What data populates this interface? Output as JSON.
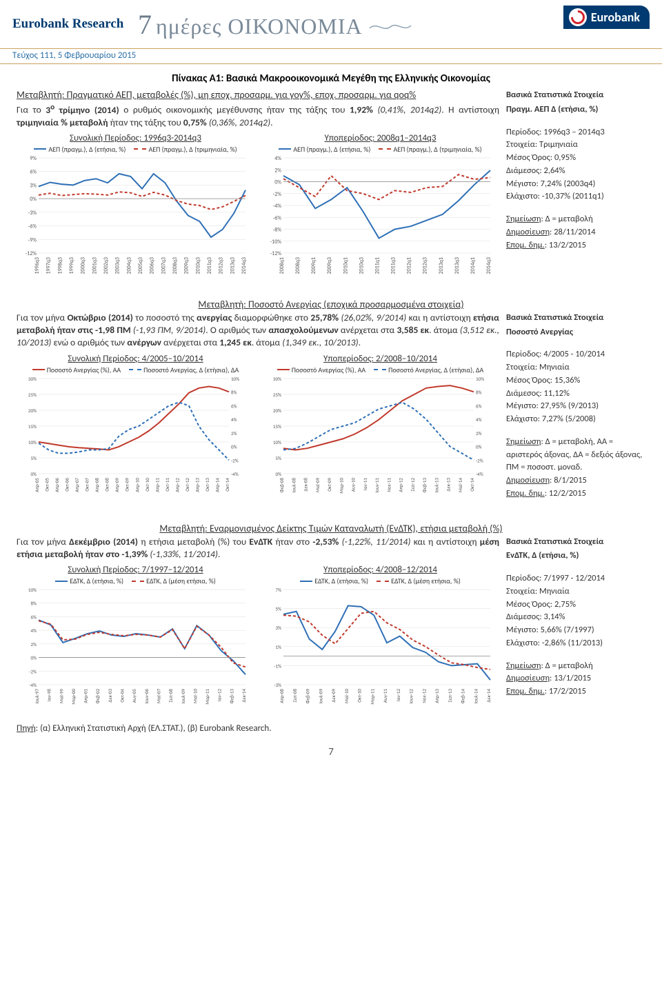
{
  "header": {
    "brand_left": "Eurobank Research",
    "title_seven": "7",
    "title_word": "ημέρες ΟΙΚΟΝΟΜΙΑ",
    "logo_text": "Eurobank"
  },
  "subhead": "Τεύχος 111, 5 Φεβρουαρίου 2015",
  "table_title": "Πίνακας A1: Βασικά Μακροοικονομικά Μεγέθη της Ελληνικής Οικονομίας",
  "sec1": {
    "var_title": "Μεταβλητή: Πραγματικό ΑΕΠ, μεταβολές (%), μη εποχ. προσαρμ. για yoy%, εποχ. προσαρμ. για qoq%",
    "para": "Για το <b>3<sup>ο</sup> τρίμηνο (2014)</b> ο ρυθμός οικονομικής μεγέθυνσης ήταν της τάξης του <b>1,92%</b> <i>(0,41%, 2014q2)</i>. Η αντίστοιχη <b>τριμηνιαία % μεταβολή</b> ήταν της τάξης του <b>0,75%</b> <i>(0,36%, 2014q2)</i>.",
    "chart_left_caption": "Συνολική Περίοδος: 1996q3-2014q3",
    "chart_right_caption": "Υποπερίοδος: 2008q1–2014q3",
    "legend_a": "ΑΕΠ (πραγμ.), Δ (ετήσια, %)",
    "legend_b": "ΑΕΠ (πραγμ.), Δ (τριμηνιαία, %)",
    "chart_left": {
      "type": "line",
      "y_ticks": [
        "9%",
        "6%",
        "3%",
        "0%",
        "-3%",
        "-6%",
        "-9%",
        "-12%"
      ],
      "ylim": [
        -12,
        9
      ],
      "x_labels": [
        "1996q3",
        "1997q3",
        "1998q3",
        "1999q3",
        "2000q3",
        "2001q3",
        "2002q3",
        "2003q3",
        "2004q3",
        "2005q3",
        "2006q3",
        "2007q3",
        "2008q3",
        "2009q3",
        "2010q3",
        "2011q3",
        "2012q3",
        "2013q3",
        "2014q3"
      ],
      "series_blue": [
        2.7,
        3.6,
        3.2,
        3.0,
        4.0,
        4.4,
        3.5,
        5.5,
        4.9,
        2.2,
        5.5,
        3.5,
        -0.5,
        -3.7,
        -5.0,
        -8.5,
        -6.8,
        -3.2,
        1.9
      ],
      "series_red": [
        0.8,
        1.2,
        0.7,
        0.9,
        1.1,
        1.0,
        0.8,
        1.5,
        1.3,
        0.5,
        1.4,
        0.8,
        -0.4,
        -1.2,
        -1.5,
        -2.4,
        -1.8,
        -0.6,
        0.7
      ],
      "blue_color": "#2e6fb6",
      "red_color": "#c0392b",
      "label_fontsize": 8
    },
    "chart_right": {
      "type": "line",
      "y_ticks": [
        "4%",
        "2%",
        "0%",
        "-2%",
        "-4%",
        "-6%",
        "-8%",
        "-10%",
        "-12%"
      ],
      "ylim": [
        -12,
        4
      ],
      "x_labels": [
        "2008q1",
        "2008q3",
        "2009q1",
        "2009q3",
        "2010q1",
        "2010q3",
        "2011q1",
        "2011q3",
        "2012q1",
        "2012q3",
        "2013q1",
        "2013q3",
        "2014q1",
        "2014q3"
      ],
      "series_blue": [
        1.0,
        -0.5,
        -4.5,
        -3.0,
        -1.0,
        -5.0,
        -9.5,
        -8.0,
        -7.5,
        -6.5,
        -5.5,
        -3.2,
        -0.5,
        1.9
      ],
      "series_red": [
        0.5,
        -1.0,
        -2.5,
        1.0,
        -1.5,
        -2.0,
        -3.0,
        -1.5,
        -1.8,
        -1.0,
        -0.8,
        1.2,
        0.4,
        0.7
      ],
      "blue_color": "#2e6fb6",
      "red_color": "#c0392b",
      "label_fontsize": 8
    },
    "stats": {
      "title": "Βασικά Στατιστικά Στοιχεία",
      "subtitle": "Πραγμ. ΑΕΠ Δ (ετήσια, %)",
      "period": "Περίοδος: 1996q3 – 2014q3",
      "data": "Στοιχεία: Τριμηνιαία",
      "mean": "Μέσος Όρος: 0,95%",
      "median": "Διάμεσος: 2,64%",
      "max": "Μέγιστο: 7,24% (2003q4)",
      "min": "Ελάχιστο: -10,37% (2011q1)",
      "note": "Σημείωση: Δ = μεταβολή",
      "pub": "Δημοσίευση: 28/11/2014",
      "next": "Επομ. δημ.: 13/2/2015"
    }
  },
  "sec2": {
    "var_title": "Μεταβλητή: Ποσοστό Ανεργίας (εποχικά προσαρμοσμένα στοιχεία)",
    "para": "Για τον μήνα <b>Οκτώβριο (2014)</b> το ποσοστό της <b>ανεργίας</b> διαμορφώθηκε στο <b>25,78%</b> <i>(26,02%, 9/2014)</i> και η αντίστοιχη <b>ετήσια μεταβολή ήταν στις -1,98 ΠΜ</b> <i>(-1,93 ΠΜ, 9/2014)</i>. Ο αριθμός των <b>απασχολούμενων</b> ανέρχεται στα <b>3,585 εκ</b>. άτομα <i>(3,512 εκ., 10/2013)</i> ενώ ο αριθμός των <b>ανέργων</b> ανέρχεται στα <b>1,245 εκ</b>. άτομα <i>(1,349 εκ., 10/2013)</i>.",
    "chart_left_caption": "Συνολική Περίοδος: 4/2005–10/2014",
    "chart_right_caption": "Υποπερίοδος: 2/2008–10/2014",
    "legend_a": "Ποσοστό Ανεργίας (%), ΑΑ",
    "legend_b": "Ποσοστό Ανεργίας, Δ (ετήσια), ΔΑ",
    "chart_left": {
      "type": "line-2axis",
      "y1_ticks": [
        "30%",
        "25%",
        "20%",
        "15%",
        "10%",
        "5%",
        "0%"
      ],
      "y2_ticks": [
        "10%",
        "8%",
        "6%",
        "4%",
        "2%",
        "0%",
        "-2%",
        "-4%"
      ],
      "y1_lim": [
        0,
        30
      ],
      "y2_lim": [
        -4,
        10
      ],
      "x_labels": [
        "Απρ-05",
        "Οκτ-05",
        "Απρ-06",
        "Οκτ-06",
        "Απρ-07",
        "Οκτ-07",
        "Απρ-08",
        "Οκτ-08",
        "Απρ-09",
        "Οκτ-09",
        "Απρ-10",
        "Οκτ-10",
        "Απρ-11",
        "Οκτ-11",
        "Απρ-12",
        "Οκτ-12",
        "Απρ-13",
        "Οκτ-13",
        "Απρ-14",
        "Οκτ-14"
      ],
      "series_red": [
        10,
        9.5,
        9,
        8.5,
        8.2,
        8,
        7.8,
        7.5,
        8.5,
        10,
        11.5,
        13.5,
        16,
        19,
        22,
        25.5,
        27,
        27.5,
        27,
        25.8
      ],
      "series_blue": [
        0.5,
        -0.5,
        -1,
        -1,
        -0.8,
        -0.5,
        -0.5,
        -0.3,
        1.5,
        2.5,
        3,
        4,
        5,
        6,
        6.5,
        6,
        3,
        1,
        -0.5,
        -2
      ],
      "red_color": "#c0392b",
      "blue_color": "#2e6fb6",
      "label_fontsize": 7
    },
    "chart_right": {
      "type": "line-2axis",
      "y1_ticks": [
        "30%",
        "25%",
        "20%",
        "15%",
        "10%",
        "5%",
        "0%"
      ],
      "y2_ticks": [
        "10%",
        "8%",
        "6%",
        "4%",
        "2%",
        "0%",
        "-2%",
        "-4%"
      ],
      "y1_lim": [
        0,
        30
      ],
      "y2_lim": [
        -4,
        10
      ],
      "x_labels": [
        "Φεβ-08",
        "Ιουλ-08",
        "Δεκ-08",
        "Μαϊ-09",
        "Οκτ-09",
        "Μαρ-10",
        "Αυγ-10",
        "Ιαν-11",
        "Ιουν-11",
        "Νοε-11",
        "Απρ-12",
        "Σεπ-12",
        "Φεβ-13",
        "Ιουλ-13",
        "Δεκ-13",
        "Μαϊ-14",
        "Οκτ-14"
      ],
      "series_red": [
        8,
        7.5,
        8,
        9,
        10,
        11,
        12.5,
        14.5,
        17,
        20,
        23,
        25,
        27,
        27.5,
        27.8,
        27,
        25.8
      ],
      "series_blue": [
        -0.5,
        -0.3,
        0.5,
        1.5,
        2.5,
        3,
        3.5,
        4.5,
        5.5,
        6,
        6.5,
        5.5,
        4,
        2,
        0,
        -1,
        -2
      ],
      "red_color": "#c0392b",
      "blue_color": "#2e6fb6",
      "label_fontsize": 7
    },
    "stats": {
      "title": "Βασικά Στατιστικά Στοιχεία",
      "subtitle": "Ποσοστό Ανεργίας",
      "period": "Περίοδος: 4/2005 - 10/2014",
      "data": "Στοιχεία: Μηνιαία",
      "mean": "Μέσος Όρος: 15,36%",
      "median": "Διάμεσος: 11,12%",
      "max": "Μέγιστο: 27,95% (9/2013)",
      "min": "Ελάχιστο: 7,27% (5/2008)",
      "note": "Σημείωση: Δ = μεταβολή, ΑΑ = αριστερός άξονας, ΔΑ = δεξιός άξονας, ΠΜ = ποσοστ. μοναδ.",
      "pub": "Δημοσίευση: 8/1/2015",
      "next": "Επομ. δημ.: 12/2/2015"
    }
  },
  "sec3": {
    "var_title": "Μεταβλητή: Εναρμονισμένος Δείκτης Τιμών Καταναλωτή (ΕνΔΤΚ), ετήσια μεταβολή (%)",
    "para": "Για τον μήνα <b>Δεκέμβριο (2014)</b> η ετήσια μεταβολή (%) του <b>ΕνΔΤΚ</b> ήταν στο <b>-2,53%</b> <i>(-1,22%, 11/2014)</i> και η αντίστοιχη <b>μέση ετήσια μεταβολή ήταν στο -1,39%</b> <i>(-1,33%, 11/2014)</i>.",
    "chart_left_caption": "Συνολική Περίοδος: 7/1997–12/2014",
    "chart_right_caption": "Υποπερίοδος: 4/2008–12/2014",
    "legend_a": "ΕΔΤΚ, Δ (ετήσια, %)",
    "legend_b": "ΕΔΤΚ, Δ (μέση ετήσια, %)",
    "chart_left": {
      "type": "line",
      "y_ticks": [
        "10%",
        "8%",
        "6%",
        "4%",
        "2%",
        "0%",
        "-2%",
        "-4%"
      ],
      "ylim": [
        -4,
        10
      ],
      "x_labels": [
        "Ιουλ-97",
        "Ιαν-98",
        "Μαϊ-99",
        "Μαρ-00",
        "Απρ-01",
        "Φεβ-02",
        "Δεκ-03",
        "Οκτ-04",
        "Αυγ-05",
        "Ιουν-06",
        "Μαϊ-07",
        "Σεπ-08",
        "Ιουλ-09",
        "Μαϊ-10",
        "Μαρ-11",
        "Ιαν-12",
        "Φεβ-13",
        "Δεκ-14"
      ],
      "series_blue": [
        5.5,
        4.8,
        2.2,
        2.8,
        3.5,
        3.9,
        3.3,
        3.1,
        3.5,
        3.3,
        3.0,
        4.2,
        1.3,
        4.7,
        3.3,
        1.0,
        -0.5,
        -2.5
      ],
      "series_red": [
        5.4,
        4.9,
        2.6,
        2.7,
        3.4,
        3.7,
        3.4,
        3.2,
        3.4,
        3.3,
        3.0,
        4.1,
        1.3,
        4.6,
        3.3,
        1.5,
        -0.8,
        -1.4
      ],
      "blue_color": "#2e6fb6",
      "red_color": "#c0392b",
      "label_fontsize": 7
    },
    "chart_right": {
      "type": "line",
      "y_ticks": [
        "7%",
        "5%",
        "3%",
        "1%",
        "-1%",
        "-3%"
      ],
      "ylim": [
        -3,
        7
      ],
      "x_labels": [
        "Απρ-08",
        "Σεπ-08",
        "Φεβ-09",
        "Ιουλ-09",
        "Δεκ-09",
        "Μαϊ-10",
        "Οκτ-10",
        "Μαρ-11",
        "Αυγ-11",
        "Ιαν-12",
        "Ιουν-12",
        "Νοε-12",
        "Απρ-13",
        "Σεπ-13",
        "Φεβ-14",
        "Ιουλ-14",
        "Δεκ-14"
      ],
      "series_blue": [
        4.4,
        4.7,
        1.8,
        0.7,
        2.6,
        5.3,
        5.2,
        4.3,
        1.4,
        2.1,
        0.9,
        0.4,
        -0.6,
        -1.0,
        -0.9,
        -0.8,
        -2.5
      ],
      "series_red": [
        4.3,
        4.2,
        3.6,
        2.2,
        1.3,
        2.9,
        4.5,
        4.7,
        3.5,
        2.8,
        1.7,
        1.0,
        0.1,
        -0.7,
        -0.9,
        -1.2,
        -1.4
      ],
      "blue_color": "#2e6fb6",
      "red_color": "#c0392b",
      "label_fontsize": 7
    },
    "stats": {
      "title": "Βασικά Στατιστικά Στοιχεία",
      "subtitle": "ΕνΔΤΚ, Δ (ετήσια, %)",
      "period": "Περίοδος: 7/1997 - 12/2014",
      "data": "Στοιχεία: Μηνιαία",
      "mean": "Μέσος Όρος: 2,75%",
      "median": "Διάμεσος: 3,14%",
      "max": "Μέγιστο: 5,66% (7/1997)",
      "min": "Ελάχιστο: -2,86% (11/2013)",
      "note": "Σημείωση: Δ = μεταβολή",
      "pub": "Δημοσίευση: 13/1/2015",
      "next": "Επομ. δημ.: 17/2/2015"
    }
  },
  "source": "Πηγή: (α) Ελληνική Στατιστική Αρχή (ΕΛ.ΣΤΑΤ.), (β) Eurobank Research.",
  "page_num": "7"
}
